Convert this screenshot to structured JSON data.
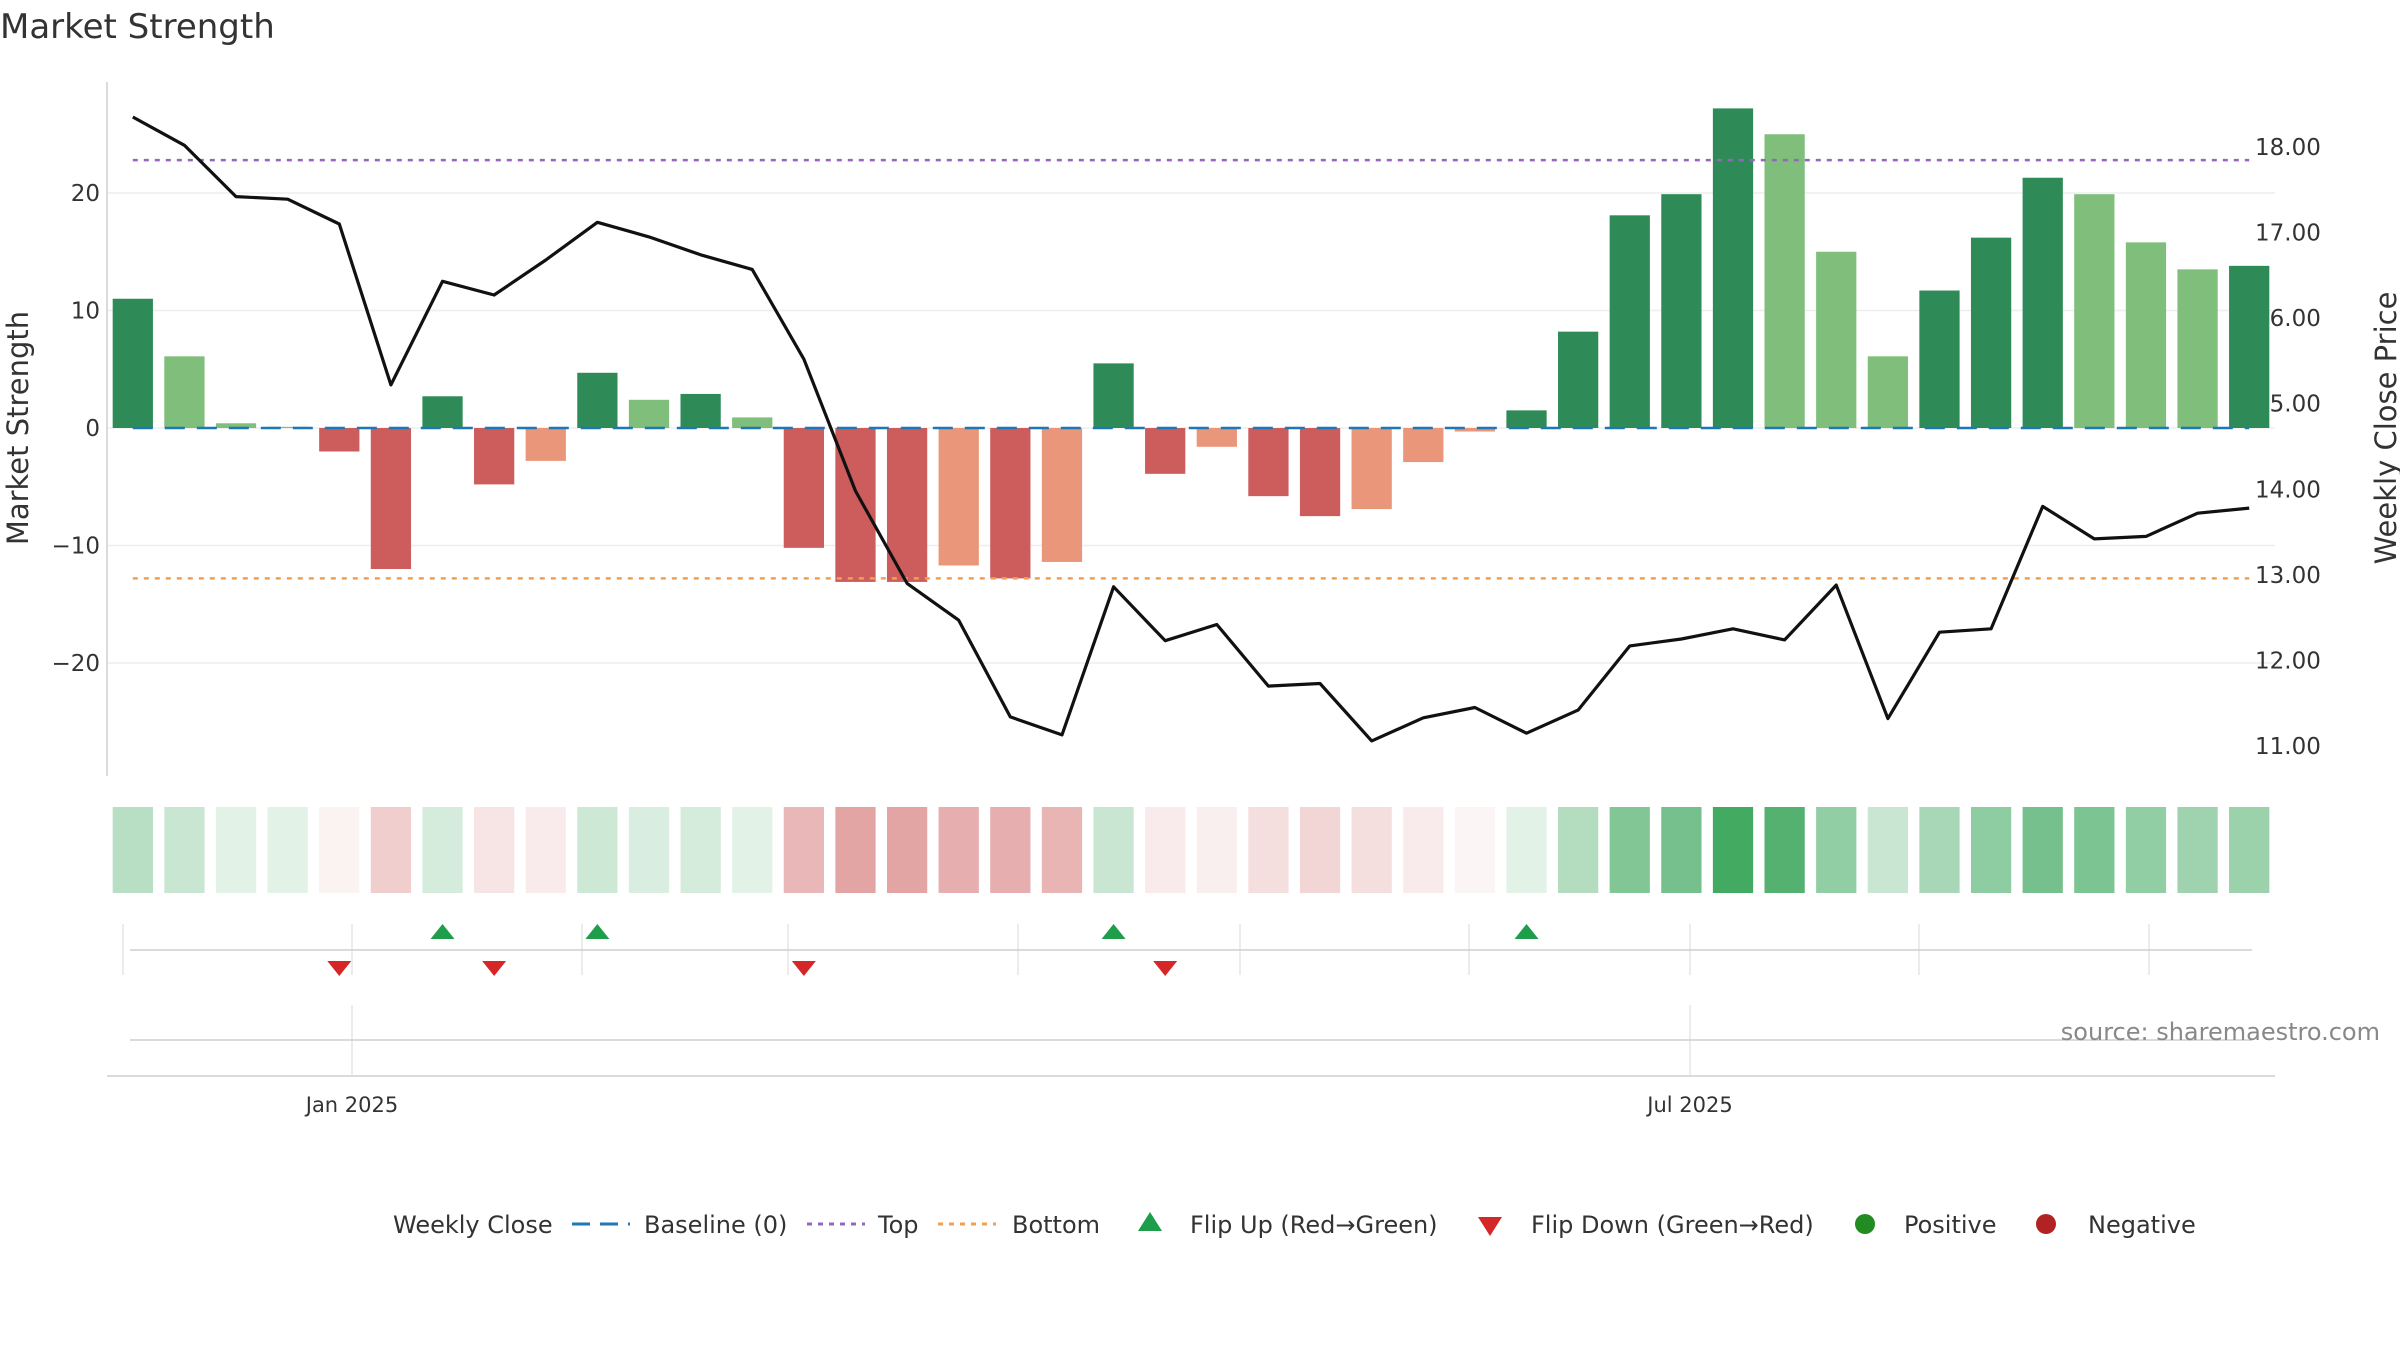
{
  "title": "Market Strength",
  "source": "source: sharemaestro.com",
  "colors": {
    "pos_strong": "#2e8b57",
    "pos_light": "#7fbf7b",
    "neg_strong": "#cd5c5c",
    "neg_light": "#e9967a",
    "line": "#111111",
    "baseline": "#1f77b4",
    "top": "#9467bd",
    "bottom": "#f0a050",
    "flip_up": "#1e9e4a",
    "flip_down": "#d62728",
    "positive": "#228b22",
    "negative": "#b22222"
  },
  "chart_data": {
    "type": "bar",
    "left_axis": {
      "label": "Market Strength",
      "ticks": [
        20,
        10,
        0,
        -10,
        -20
      ],
      "tick_labels": [
        "20",
        "10",
        "0",
        "−10",
        "−20"
      ],
      "range": [
        -29.3,
        29.3
      ]
    },
    "right_axis": {
      "label": "Weekly Close Price",
      "ticks": [
        18,
        17,
        16,
        15,
        14,
        13,
        12,
        11
      ],
      "tick_labels": [
        "18.00",
        "17.00",
        "16.00",
        "15.00",
        "14.00",
        "13.00",
        "12.00",
        "11.00"
      ],
      "range": [
        10.6,
        18.9
      ]
    },
    "x_dates": [
      "Jan 2025",
      "Jul 2025"
    ],
    "strength": [
      11,
      6.1,
      0.4,
      0.1,
      -2,
      -12,
      2.7,
      -4.8,
      -2.8,
      4.7,
      2.4,
      2.9,
      0.9,
      -10.2,
      -13.1,
      -13.1,
      -11.7,
      -12.8,
      -11.4,
      5.5,
      -3.9,
      -1.6,
      -5.8,
      -7.5,
      -6.9,
      -2.9,
      -0.3,
      1.5,
      8.2,
      18.1,
      19.9,
      27.2,
      25,
      15,
      6.1,
      11.7,
      16.2,
      21.3,
      19.9,
      15.8,
      13.5,
      13.8
    ],
    "bar_shade": [
      "strong",
      "light",
      "light",
      "light",
      "strong",
      "strong",
      "strong",
      "strong",
      "light",
      "strong",
      "light",
      "strong",
      "light",
      "strong",
      "strong",
      "strong",
      "light",
      "strong",
      "light",
      "strong",
      "strong",
      "light",
      "strong",
      "strong",
      "light",
      "light",
      "light",
      "strong",
      "strong",
      "strong",
      "strong",
      "strong",
      "light",
      "light",
      "light",
      "strong",
      "strong",
      "strong",
      "light",
      "light",
      "light",
      "strong"
    ],
    "weekly_close": [
      18.35,
      18.02,
      17.42,
      17.39,
      17.1,
      15.22,
      16.43,
      16.27,
      16.68,
      17.12,
      16.95,
      16.74,
      16.57,
      15.52,
      13.98,
      12.9,
      12.47,
      11.34,
      11.13,
      12.86,
      12.23,
      12.42,
      11.7,
      11.73,
      11.06,
      11.33,
      11.45,
      11.15,
      11.42,
      12.17,
      12.25,
      12.37,
      12.24,
      12.88,
      11.32,
      12.33,
      12.37,
      13.8,
      13.42,
      13.45,
      13.72,
      13.78
    ],
    "heat_strip": [
      0.34,
      0.26,
      0.14,
      0.14,
      -0.08,
      -0.3,
      0.2,
      -0.16,
      -0.12,
      0.24,
      0.18,
      0.2,
      0.14,
      -0.44,
      -0.56,
      -0.56,
      -0.5,
      -0.5,
      -0.46,
      0.26,
      -0.12,
      -0.1,
      -0.2,
      -0.26,
      -0.2,
      -0.12,
      -0.06,
      0.14,
      0.36,
      0.6,
      0.66,
      0.9,
      0.82,
      0.52,
      0.26,
      0.42,
      0.54,
      0.66,
      0.62,
      0.52,
      0.46,
      0.48
    ],
    "top_level": 22.8,
    "bottom_level": -12.8,
    "flip_up_weeks": [
      6,
      9,
      19,
      27
    ],
    "flip_down_weeks": [
      4,
      7,
      13,
      20
    ],
    "legend": [
      {
        "key": "weekly_close",
        "label": "Weekly Close",
        "symbol": "line"
      },
      {
        "key": "baseline",
        "label": "Baseline (0)",
        "symbol": "dash"
      },
      {
        "key": "top",
        "label": "Top",
        "symbol": "dot"
      },
      {
        "key": "bottom",
        "label": "Bottom",
        "symbol": "dot"
      },
      {
        "key": "flip_up",
        "label": "Flip Up (Red→Green)",
        "symbol": "tri-up"
      },
      {
        "key": "flip_down",
        "label": "Flip Down (Green→Red)",
        "symbol": "tri-down"
      },
      {
        "key": "positive",
        "label": "Positive",
        "symbol": "circle"
      },
      {
        "key": "negative",
        "label": "Negative",
        "symbol": "circle"
      }
    ]
  }
}
